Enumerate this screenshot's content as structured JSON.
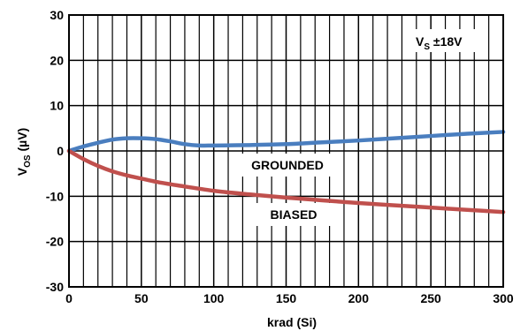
{
  "chart_data": {
    "type": "line",
    "title": "",
    "xlabel": "krad (Si)",
    "ylabel_main": "V",
    "ylabel_sub": "OS",
    "ylabel_unit": " (µV)",
    "xlim": [
      0,
      300
    ],
    "ylim": [
      -30,
      30
    ],
    "x_ticks": [
      0,
      50,
      100,
      150,
      200,
      250,
      300
    ],
    "y_ticks": [
      -30,
      -20,
      -10,
      0,
      10,
      20,
      30
    ],
    "x_minor_step": 10,
    "y_minor_step": 10,
    "grid": true,
    "series": [
      {
        "name": "GROUNDED",
        "color": "#4a7ebf",
        "x": [
          0,
          10,
          20,
          30,
          40,
          50,
          60,
          70,
          80,
          90,
          100,
          125,
          150,
          175,
          200,
          225,
          250,
          275,
          300
        ],
        "y": [
          0,
          1.0,
          1.8,
          2.5,
          2.8,
          2.8,
          2.6,
          2.1,
          1.5,
          1.2,
          1.2,
          1.3,
          1.5,
          1.9,
          2.3,
          2.8,
          3.3,
          3.8,
          4.2
        ]
      },
      {
        "name": "BIASED",
        "color": "#c0504d",
        "x": [
          0,
          10,
          20,
          30,
          40,
          50,
          60,
          75,
          100,
          125,
          150,
          175,
          200,
          225,
          250,
          275,
          300
        ],
        "y": [
          0,
          -1.8,
          -3.3,
          -4.5,
          -5.4,
          -6.1,
          -6.8,
          -7.6,
          -8.8,
          -9.6,
          -10.3,
          -10.9,
          -11.5,
          -12.0,
          -12.5,
          -13.0,
          -13.5
        ]
      }
    ],
    "annotations": {
      "vs_main": "V",
      "vs_sub": "S",
      "vs_value": " ±18V"
    }
  }
}
